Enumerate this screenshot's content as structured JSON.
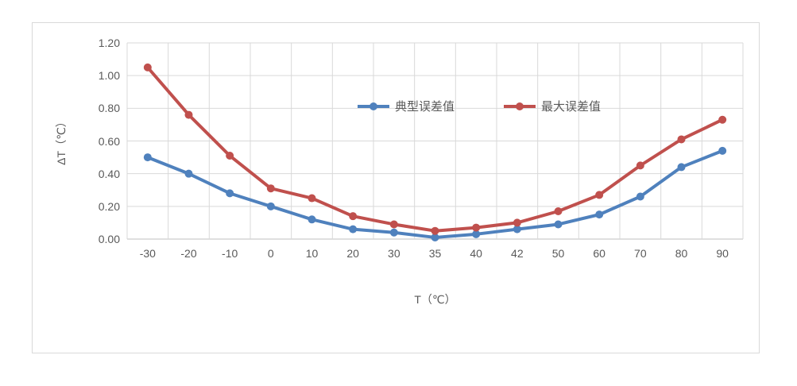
{
  "chart_data": {
    "type": "line",
    "categories": [
      "-30",
      "-20",
      "-10",
      "0",
      "10",
      "20",
      "30",
      "35",
      "40",
      "42",
      "50",
      "60",
      "70",
      "80",
      "90"
    ],
    "series": [
      {
        "name": "典型误差值",
        "color": "#4F81BD",
        "values": [
          0.5,
          0.4,
          0.28,
          0.2,
          0.12,
          0.06,
          0.04,
          0.01,
          0.03,
          0.06,
          0.09,
          0.15,
          0.26,
          0.44,
          0.54
        ]
      },
      {
        "name": "最大误差值",
        "color": "#C0504D",
        "values": [
          1.05,
          0.76,
          0.51,
          0.31,
          0.25,
          0.14,
          0.09,
          0.05,
          0.07,
          0.1,
          0.17,
          0.27,
          0.45,
          0.61,
          0.73
        ]
      }
    ],
    "title": "",
    "xlabel": "T（℃）",
    "ylabel": "ΔT（℃）",
    "ylim": [
      0,
      1.2
    ],
    "ytick_step": 0.2,
    "ytick_labels": [
      "0.00",
      "0.20",
      "0.40",
      "0.60",
      "0.80",
      "1.00",
      "1.20"
    ],
    "grid": "both",
    "legend_position": "inside-top-center"
  },
  "colors": {
    "gridline": "#d9d9d9",
    "axis_line": "#bfbfbf",
    "text": "#595959",
    "chart_border": "#d9d9d9",
    "background": "#ffffff",
    "series_typical": "#4F81BD",
    "series_max": "#C0504D"
  }
}
